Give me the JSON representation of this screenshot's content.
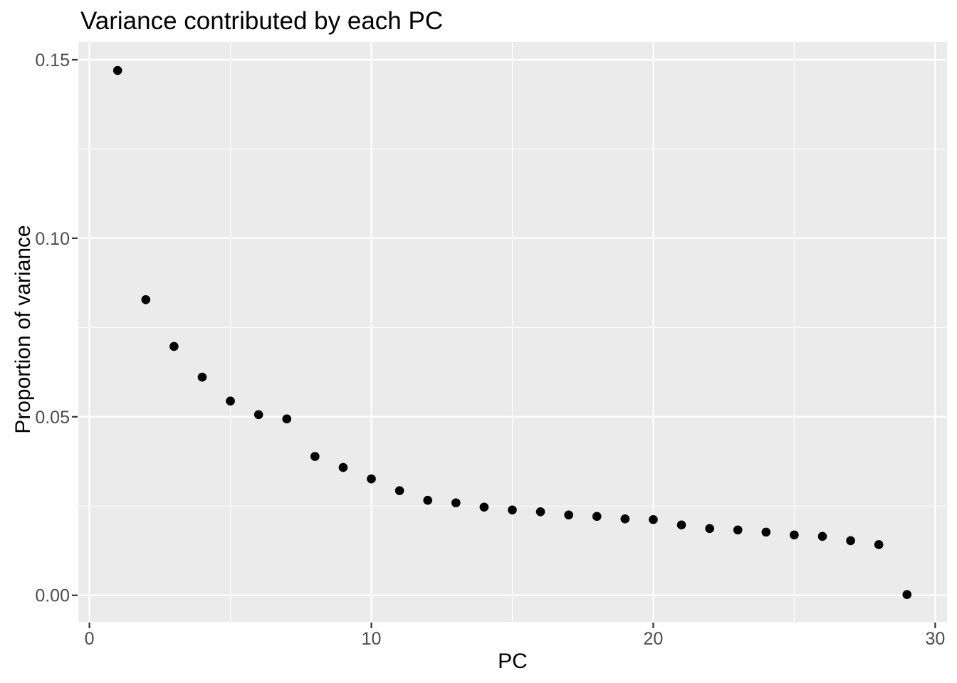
{
  "chart_data": {
    "type": "scatter",
    "title": "Variance contributed by each PC",
    "xlabel": "PC",
    "ylabel": "Proportion of variance",
    "x": [
      1,
      2,
      3,
      4,
      5,
      6,
      7,
      8,
      9,
      10,
      11,
      12,
      13,
      14,
      15,
      16,
      17,
      18,
      19,
      20,
      21,
      22,
      23,
      24,
      25,
      26,
      27,
      28,
      29
    ],
    "y": [
      0.147,
      0.0828,
      0.0697,
      0.0611,
      0.0544,
      0.0506,
      0.0494,
      0.0389,
      0.0358,
      0.0326,
      0.0293,
      0.0266,
      0.0259,
      0.0247,
      0.0239,
      0.0234,
      0.0225,
      0.0221,
      0.0214,
      0.0212,
      0.0197,
      0.0187,
      0.0183,
      0.0177,
      0.0169,
      0.0165,
      0.0153,
      0.0142,
      0.0002
    ],
    "xlim": [
      -0.394,
      30.42
    ],
    "ylim": [
      -0.00743,
      0.15498
    ],
    "x_ticks": [
      {
        "v": 0,
        "label": "0"
      },
      {
        "v": 10,
        "label": "10"
      },
      {
        "v": 20,
        "label": "20"
      },
      {
        "v": 30,
        "label": "30"
      }
    ],
    "y_ticks": [
      {
        "v": 0.0,
        "label": "0.00"
      },
      {
        "v": 0.05,
        "label": "0.05"
      },
      {
        "v": 0.1,
        "label": "0.10"
      },
      {
        "v": 0.15,
        "label": "0.15"
      }
    ],
    "x_minor_ticks": [
      5,
      15,
      25
    ],
    "y_minor_ticks": [
      0.025,
      0.075,
      0.125
    ],
    "grid": true,
    "legend_position": "none",
    "colors": {
      "point": "#000000",
      "panel_background": "#EBEBEB",
      "gridline": "#FFFFFF",
      "tick_mark": "#333333",
      "tick_label": "#4D4D4D",
      "title_text": "#000000",
      "page_background": "#FFFFFF"
    }
  }
}
